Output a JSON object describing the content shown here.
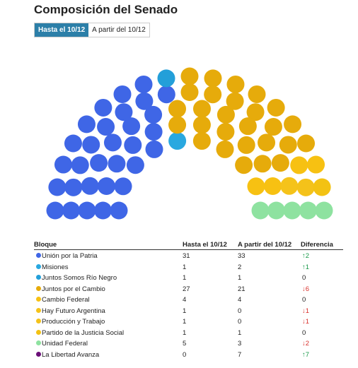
{
  "title": "Composición del Senado",
  "chart_data": {
    "type": "parliament",
    "selected": 0,
    "categories": [
      "Hasta el 10/12",
      "A partir del 10/12"
    ],
    "series": [
      {
        "name": "Unión por la Patria",
        "color": "#3f66e6",
        "values": [
          31,
          33
        ]
      },
      {
        "name": "Misiones",
        "color": "#29a8e0",
        "values": [
          1,
          2
        ]
      },
      {
        "name": "Juntos Somos Río Negro",
        "color": "#239fd9",
        "values": [
          1,
          1
        ]
      },
      {
        "name": "Juntos por el Cambio",
        "color": "#e6ab0b",
        "values": [
          27,
          21
        ]
      },
      {
        "name": "Cambio Federal",
        "color": "#f7c112",
        "values": [
          4,
          4
        ]
      },
      {
        "name": "Hay Futuro Argentina",
        "color": "#f5c31a",
        "values": [
          1,
          0
        ]
      },
      {
        "name": "Producción y Trabajo",
        "color": "#f4c21a",
        "values": [
          1,
          0
        ]
      },
      {
        "name": "Partido de la Justicia Social",
        "color": "#f3c213",
        "values": [
          1,
          1
        ]
      },
      {
        "name": "Unidad Federal",
        "color": "#8ee2a0",
        "values": [
          5,
          3
        ]
      },
      {
        "name": "La Libertad Avanza",
        "color": "#6b0f78",
        "values": [
          0,
          7
        ]
      }
    ]
  },
  "table": {
    "columns": [
      "Bloque",
      "Hasta el 10/12",
      "A partir del 10/12",
      "Diferencia"
    ],
    "differences": [
      "↑2",
      "↑1",
      "0",
      "↓6",
      "0",
      "↓1",
      "↓1",
      "0",
      "↓2",
      "↑7"
    ]
  }
}
